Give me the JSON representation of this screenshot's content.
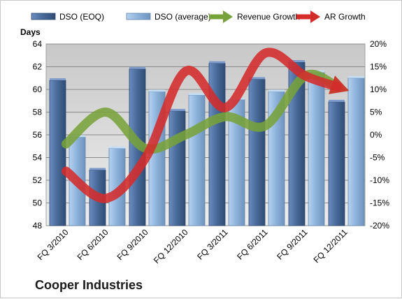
{
  "company": "Cooper Industries",
  "chart_data": {
    "type": "bar",
    "categories": [
      "FQ 3/2010",
      "FQ 6/2010",
      "FQ 9/2010",
      "FQ 12/2010",
      "FQ 3/2011",
      "FQ 6/2011",
      "FQ 9/2011",
      "FQ 12/2011"
    ],
    "ylabel": "Days",
    "ylim": [
      48,
      64
    ],
    "yticks": [
      48,
      50,
      52,
      54,
      56,
      58,
      60,
      62,
      64
    ],
    "y2lim": [
      -20,
      20
    ],
    "y2ticks": [
      "-20%",
      "-15%",
      "-10%",
      "-5%",
      "0%",
      "5%",
      "10%",
      "15%",
      "20%"
    ],
    "legend_position": "top",
    "grid": true,
    "series": [
      {
        "name": "DSO (EOQ)",
        "kind": "bar",
        "axis": "left",
        "color": "#4a6c9b",
        "values": [
          60.8,
          52.9,
          61.8,
          58.1,
          62.3,
          60.9,
          62.4,
          58.9
        ]
      },
      {
        "name": "DSO (average)",
        "kind": "bar",
        "axis": "left",
        "color": "#8fb4dc",
        "values": [
          55.8,
          54.8,
          59.8,
          59.5,
          59.1,
          59.8,
          61.5,
          61.0
        ]
      },
      {
        "name": "Revenue Growth",
        "kind": "arrow-line",
        "axis": "right",
        "unit": "%",
        "color": "#77a23a",
        "values": [
          -2,
          5,
          -3,
          0,
          4,
          2,
          13,
          10
        ]
      },
      {
        "name": "AR Growth",
        "kind": "arrow-line",
        "axis": "right",
        "unit": "%",
        "color": "#d42b2b",
        "values": [
          -8,
          -14,
          -5,
          14,
          6,
          18,
          13,
          10
        ]
      }
    ]
  }
}
